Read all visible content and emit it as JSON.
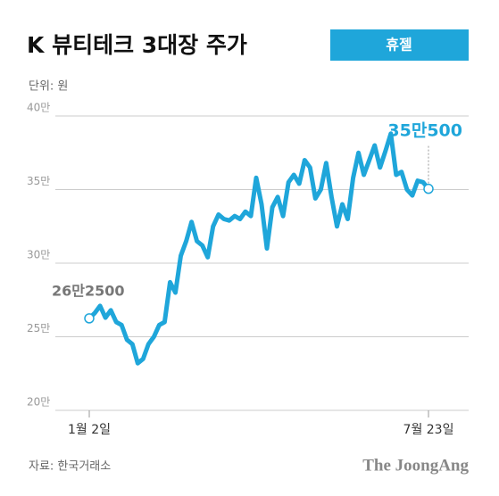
{
  "chart_data": {
    "type": "line",
    "title": "K 뷰티테크 3대장 주가",
    "badge": "휴젤",
    "unit_label": "단위: 원",
    "source": "자료: 한국거래소",
    "brand": "The JoongAng",
    "color": "#1fa6da",
    "grid": true,
    "ylim": [
      200000,
      400000
    ],
    "yticks": [
      {
        "value": 200000,
        "label": "20만"
      },
      {
        "value": 250000,
        "label": "25만"
      },
      {
        "value": 300000,
        "label": "30만"
      },
      {
        "value": 350000,
        "label": "35만"
      },
      {
        "value": 400000,
        "label": "40만"
      }
    ],
    "categories": [
      "1월 2일",
      null,
      null,
      null,
      null,
      null,
      null,
      null,
      null,
      null,
      null,
      null,
      null,
      null,
      null,
      null,
      null,
      null,
      null,
      null,
      null,
      null,
      null,
      null,
      null,
      null,
      null,
      null,
      null,
      null,
      null,
      null,
      null,
      null,
      null,
      null,
      null,
      null,
      null,
      null,
      null,
      null,
      null,
      null,
      null,
      null,
      null,
      null,
      null,
      null,
      null,
      null,
      null,
      null,
      null,
      null,
      null,
      null,
      null,
      null,
      null,
      null,
      null,
      "7월 23일"
    ],
    "values": [
      262500,
      266000,
      271000,
      263000,
      268000,
      260000,
      258000,
      248000,
      245000,
      232000,
      235000,
      245000,
      250000,
      258000,
      260000,
      287000,
      280000,
      305000,
      315000,
      328000,
      315000,
      312000,
      304000,
      325000,
      333000,
      330000,
      329000,
      332000,
      330000,
      335000,
      332000,
      358000,
      340000,
      310000,
      338000,
      345000,
      332000,
      355000,
      360000,
      354000,
      370000,
      365000,
      344000,
      350000,
      368000,
      345000,
      325000,
      340000,
      330000,
      358000,
      375000,
      360000,
      370000,
      380000,
      365000,
      376000,
      388000,
      360000,
      362000,
      350000,
      346000,
      356000,
      355000,
      350500
    ],
    "value_labels": [
      "26만2500",
      null,
      null,
      null,
      null,
      null,
      null,
      null,
      null,
      null,
      null,
      null,
      null,
      null,
      null,
      null,
      null,
      null,
      null,
      null,
      null,
      null,
      null,
      null,
      null,
      null,
      null,
      null,
      null,
      null,
      null,
      null,
      null,
      null,
      null,
      null,
      null,
      null,
      null,
      null,
      null,
      null,
      null,
      null,
      null,
      null,
      null,
      null,
      null,
      null,
      null,
      null,
      null,
      null,
      null,
      null,
      null,
      null,
      null,
      null,
      null,
      null,
      null,
      "35만500"
    ]
  }
}
